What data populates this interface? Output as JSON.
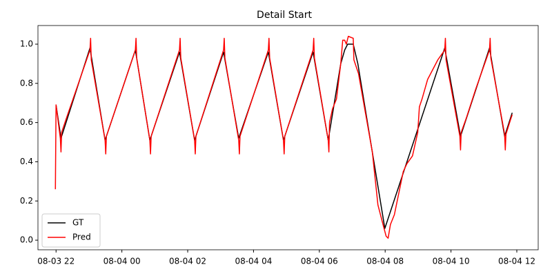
{
  "chart_data": {
    "type": "line",
    "title": "Detail Start",
    "xlim": [
      21.45,
      36.65
    ],
    "xticks": [
      {
        "value": 22,
        "label": "08-03 22"
      },
      {
        "value": 24,
        "label": "08-04 00"
      },
      {
        "value": 26,
        "label": "08-04 02"
      },
      {
        "value": 28,
        "label": "08-04 04"
      },
      {
        "value": 30,
        "label": "08-04 06"
      },
      {
        "value": 32,
        "label": "08-04 08"
      },
      {
        "value": 34,
        "label": "08-04 10"
      },
      {
        "value": 36,
        "label": "08-04 12"
      }
    ],
    "ylim": [
      -0.049,
      1.095
    ],
    "yticks": [
      {
        "value": 0,
        "label": "0.0"
      },
      0.2,
      0.4,
      0.6,
      0.8,
      {
        "value": 1,
        "label": "1.0"
      }
    ],
    "legend": "lower left",
    "series": [
      {
        "name": "GT",
        "color": "#000000",
        "x": [
          22.0,
          22.15,
          23.03,
          23.49,
          24.41,
          24.85,
          25.75,
          26.21,
          27.09,
          27.55,
          28.45,
          28.91,
          29.81,
          30.27,
          30.65,
          30.77,
          30.86,
          31.03,
          31.17,
          31.99,
          33.81,
          34.29,
          35.17,
          35.63,
          35.86
        ],
        "values": [
          0.69,
          0.52,
          0.98,
          0.51,
          0.97,
          0.51,
          0.96,
          0.51,
          0.96,
          0.52,
          0.96,
          0.51,
          0.96,
          0.51,
          0.9,
          0.97,
          1.0,
          1.0,
          0.9,
          0.06,
          0.98,
          0.53,
          0.98,
          0.53,
          0.65
        ]
      },
      {
        "name": "Pred",
        "color": "#ff0000",
        "x": [
          21.98,
          22.0,
          22.13,
          22.15,
          22.17,
          22.31,
          23.03,
          23.05,
          23.07,
          23.49,
          23.51,
          23.53,
          24.41,
          24.43,
          24.45,
          24.85,
          24.87,
          24.89,
          25.75,
          25.77,
          25.79,
          26.21,
          26.23,
          26.25,
          27.09,
          27.11,
          27.13,
          27.55,
          27.57,
          27.59,
          28.45,
          28.47,
          28.49,
          28.91,
          28.93,
          28.95,
          29.81,
          29.83,
          29.85,
          30.27,
          30.29,
          30.31,
          30.4,
          30.52,
          30.65,
          30.71,
          30.77,
          30.82,
          30.88,
          31.03,
          31.05,
          31.19,
          31.61,
          31.78,
          31.95,
          32.03,
          32.09,
          32.16,
          32.28,
          32.55,
          32.66,
          32.83,
          32.99,
          33.04,
          33.12,
          33.29,
          33.6,
          33.81,
          33.83,
          33.85,
          34.27,
          34.29,
          34.31,
          34.46,
          34.75,
          35.17,
          35.19,
          35.21,
          35.63,
          35.65,
          35.67,
          35.8,
          35.86
        ],
        "values": [
          0.26,
          0.69,
          0.52,
          0.45,
          0.55,
          0.62,
          0.97,
          1.03,
          0.92,
          0.51,
          0.44,
          0.53,
          0.97,
          1.03,
          0.93,
          0.51,
          0.44,
          0.53,
          0.97,
          1.03,
          0.93,
          0.51,
          0.44,
          0.53,
          0.97,
          1.03,
          0.93,
          0.51,
          0.44,
          0.53,
          0.97,
          1.03,
          0.93,
          0.51,
          0.44,
          0.53,
          0.97,
          1.03,
          0.93,
          0.51,
          0.45,
          0.6,
          0.67,
          0.72,
          0.9,
          1.02,
          1.02,
          1.0,
          1.04,
          1.03,
          0.92,
          0.85,
          0.45,
          0.18,
          0.07,
          0.02,
          0.01,
          0.08,
          0.13,
          0.35,
          0.39,
          0.43,
          0.55,
          0.68,
          0.72,
          0.82,
          0.92,
          0.97,
          1.03,
          0.92,
          0.53,
          0.46,
          0.55,
          0.62,
          0.77,
          0.97,
          1.03,
          0.93,
          0.54,
          0.46,
          0.54,
          0.61,
          0.64
        ]
      }
    ]
  }
}
